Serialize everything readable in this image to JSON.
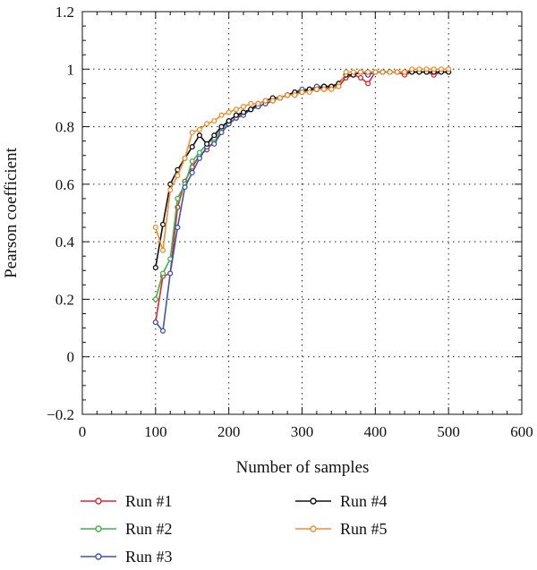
{
  "chart_data": {
    "type": "line",
    "xlabel": "Number of samples",
    "ylabel": "Pearson coefficient",
    "xlim": [
      0,
      600
    ],
    "ylim": [
      -0.2,
      1.2
    ],
    "x_ticks": [
      0,
      100,
      200,
      300,
      400,
      500,
      600
    ],
    "y_ticks": [
      -0.2,
      0,
      0.2,
      0.4,
      0.6,
      0.8,
      1,
      1.2
    ],
    "x_tick_labels": [
      "0",
      "100",
      "200",
      "300",
      "400",
      "500",
      "600"
    ],
    "y_tick_labels": [
      "−0.2",
      "0",
      "0.2",
      "0.4",
      "0.6",
      "0.8",
      "1",
      "1.2"
    ],
    "grid": "dotted",
    "legend_position": "bottom",
    "series": [
      {
        "name": "Run #1",
        "color": "#e3242b",
        "x": [
          100,
          110,
          120,
          130,
          140,
          150,
          160,
          170,
          180,
          190,
          200,
          210,
          220,
          230,
          240,
          250,
          260,
          270,
          280,
          290,
          300,
          310,
          320,
          330,
          340,
          350,
          360,
          370,
          380,
          390,
          400,
          410,
          420,
          430,
          440,
          450,
          460,
          470,
          480,
          490,
          500
        ],
        "y": [
          0.12,
          0.28,
          0.29,
          0.52,
          0.61,
          0.66,
          0.7,
          0.72,
          0.75,
          0.78,
          0.81,
          0.83,
          0.85,
          0.86,
          0.87,
          0.88,
          0.89,
          0.9,
          0.91,
          0.91,
          0.92,
          0.93,
          0.93,
          0.93,
          0.94,
          0.94,
          0.97,
          0.98,
          0.97,
          0.95,
          0.99,
          0.99,
          0.99,
          0.99,
          0.98,
          0.99,
          0.99,
          0.99,
          0.98,
          0.99,
          0.99
        ]
      },
      {
        "name": "Run #2",
        "color": "#3cb44b",
        "x": [
          100,
          110,
          120,
          130,
          140,
          150,
          160,
          170,
          180,
          190,
          200,
          210,
          220,
          230,
          240,
          250,
          260,
          270,
          280,
          290,
          300,
          310,
          320,
          330,
          340,
          350,
          360,
          370,
          380,
          390,
          400,
          410,
          420,
          430,
          440,
          450,
          460,
          470,
          480,
          490,
          500
        ],
        "y": [
          0.2,
          0.29,
          0.34,
          0.55,
          0.6,
          0.68,
          0.71,
          0.74,
          0.76,
          0.79,
          0.82,
          0.84,
          0.85,
          0.86,
          0.87,
          0.88,
          0.89,
          0.9,
          0.91,
          0.92,
          0.92,
          0.93,
          0.93,
          0.94,
          0.94,
          0.95,
          0.98,
          0.98,
          0.99,
          0.98,
          0.99,
          0.99,
          0.99,
          0.99,
          0.99,
          0.99,
          0.99,
          0.99,
          0.99,
          0.99,
          0.99
        ]
      },
      {
        "name": "Run #3",
        "color": "#3a56b0",
        "x": [
          100,
          110,
          120,
          130,
          140,
          150,
          160,
          170,
          180,
          190,
          200,
          210,
          220,
          230,
          240,
          250,
          260,
          270,
          280,
          290,
          300,
          310,
          320,
          330,
          340,
          350,
          360,
          370,
          380,
          390,
          400,
          410,
          420,
          430,
          440,
          450,
          460,
          470,
          480,
          490,
          500
        ],
        "y": [
          0.12,
          0.09,
          0.29,
          0.45,
          0.59,
          0.64,
          0.69,
          0.73,
          0.74,
          0.78,
          0.81,
          0.83,
          0.84,
          0.86,
          0.87,
          0.88,
          0.89,
          0.9,
          0.91,
          0.92,
          0.93,
          0.93,
          0.94,
          0.94,
          0.94,
          0.95,
          0.98,
          0.98,
          0.99,
          0.98,
          0.99,
          0.99,
          0.99,
          0.99,
          0.99,
          0.99,
          0.99,
          0.99,
          0.99,
          0.99,
          0.99
        ]
      },
      {
        "name": "Run #4",
        "color": "#111111",
        "x": [
          100,
          110,
          120,
          130,
          140,
          150,
          160,
          170,
          180,
          190,
          200,
          210,
          220,
          230,
          240,
          250,
          260,
          270,
          280,
          290,
          300,
          310,
          320,
          330,
          340,
          350,
          360,
          370,
          380,
          390,
          400,
          410,
          420,
          430,
          440,
          450,
          460,
          470,
          480,
          490,
          500
        ],
        "y": [
          0.31,
          0.46,
          0.6,
          0.65,
          0.69,
          0.73,
          0.77,
          0.74,
          0.77,
          0.8,
          0.82,
          0.84,
          0.85,
          0.86,
          0.88,
          0.89,
          0.9,
          0.9,
          0.91,
          0.92,
          0.92,
          0.93,
          0.93,
          0.94,
          0.94,
          0.95,
          0.98,
          0.98,
          0.99,
          0.99,
          0.99,
          0.99,
          0.99,
          0.99,
          0.99,
          0.99,
          0.99,
          0.99,
          0.99,
          0.99,
          0.99
        ]
      },
      {
        "name": "Run #5",
        "color": "#f28e2b",
        "x": [
          100,
          110,
          120,
          130,
          140,
          150,
          160,
          170,
          180,
          190,
          200,
          210,
          220,
          230,
          240,
          250,
          260,
          270,
          280,
          290,
          300,
          310,
          320,
          330,
          340,
          350,
          360,
          370,
          380,
          390,
          400,
          410,
          420,
          430,
          440,
          450,
          460,
          470,
          480,
          490,
          500
        ],
        "y": [
          0.45,
          0.37,
          0.58,
          0.63,
          0.69,
          0.78,
          0.79,
          0.81,
          0.82,
          0.84,
          0.85,
          0.86,
          0.87,
          0.88,
          0.88,
          0.89,
          0.89,
          0.9,
          0.91,
          0.91,
          0.92,
          0.92,
          0.93,
          0.93,
          0.93,
          0.94,
          0.99,
          0.99,
          0.99,
          0.99,
          0.99,
          0.99,
          0.99,
          0.99,
          0.99,
          1.0,
          1.0,
          1.0,
          1.0,
          1.0,
          1.0
        ]
      }
    ]
  }
}
